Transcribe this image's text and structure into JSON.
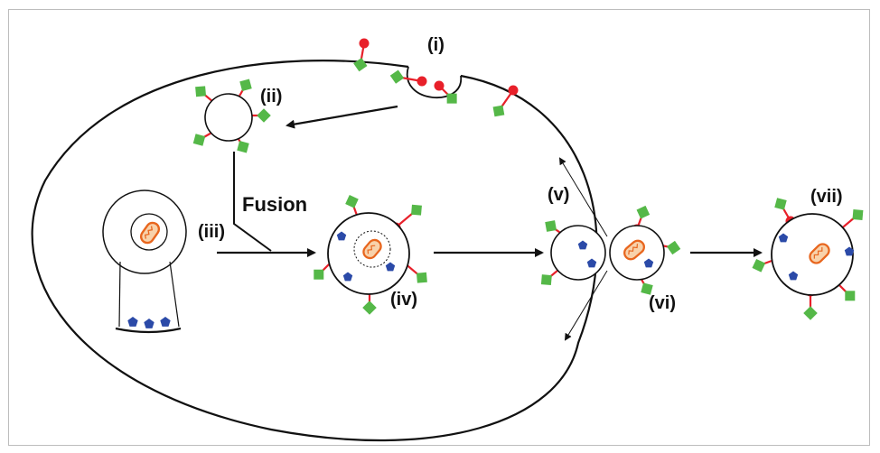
{
  "labels": {
    "i": "(i)",
    "ii": "(ii)",
    "iii": "(iii)",
    "iv": "(iv)",
    "v": "(v)",
    "vi": "(vi)",
    "vii": "(vii)",
    "fusion": "Fusion"
  },
  "colors": {
    "receptor_red": "#e8202a",
    "ligand_green": "#55b848",
    "cargo_blue": "#2b4aa8",
    "mito_orange": "#e8661e",
    "outline": "#111111"
  }
}
